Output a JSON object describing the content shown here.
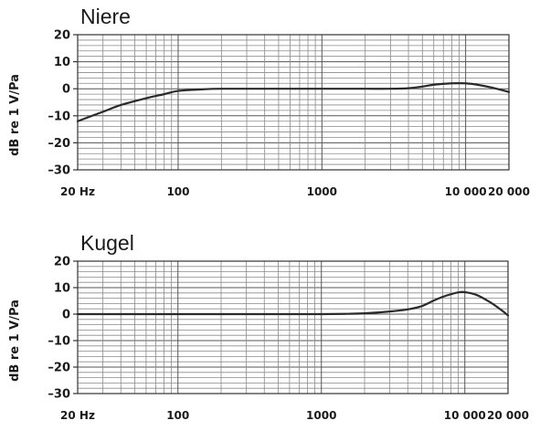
{
  "chart_data": [
    {
      "type": "line",
      "title": "Niere",
      "ylabel": "dB re 1 V/Pa",
      "xscale": "log",
      "xlim": [
        20,
        20000
      ],
      "ylim": [
        -30,
        20
      ],
      "xticks": [
        {
          "value": 20,
          "label": "20 Hz"
        },
        {
          "value": 100,
          "label": "100"
        },
        {
          "value": 1000,
          "label": "1000"
        },
        {
          "value": 10000,
          "label": "10 000"
        },
        {
          "value": 20000,
          "label": "20 000"
        }
      ],
      "yticks": [
        {
          "value": 20,
          "label": "20"
        },
        {
          "value": 10,
          "label": "10"
        },
        {
          "value": 0,
          "label": "0"
        },
        {
          "value": -10,
          "label": "–10"
        },
        {
          "value": -20,
          "label": "–20"
        },
        {
          "value": -30,
          "label": "–30"
        }
      ],
      "grid": true,
      "series": [
        {
          "x": [
            20,
            30,
            40,
            60,
            80,
            100,
            150,
            200,
            500,
            1000,
            2000,
            3000,
            4000,
            5000,
            6000,
            8000,
            10000,
            12000,
            15000,
            20000
          ],
          "y": [
            -12,
            -8.5,
            -6,
            -3.5,
            -2,
            -0.8,
            -0.2,
            0,
            0,
            0,
            0,
            0,
            0.2,
            0.8,
            1.5,
            2,
            2,
            1.5,
            0.5,
            -1.2
          ]
        }
      ]
    },
    {
      "type": "line",
      "title": "Kugel",
      "ylabel": "dB re 1 V/Pa",
      "xscale": "log",
      "xlim": [
        20,
        20000
      ],
      "ylim": [
        -30,
        20
      ],
      "xticks": [
        {
          "value": 20,
          "label": "20 Hz"
        },
        {
          "value": 100,
          "label": "100"
        },
        {
          "value": 1000,
          "label": "1000"
        },
        {
          "value": 10000,
          "label": "10 000"
        },
        {
          "value": 20000,
          "label": "20 000"
        }
      ],
      "yticks": [
        {
          "value": 20,
          "label": "20"
        },
        {
          "value": 10,
          "label": "10"
        },
        {
          "value": 0,
          "label": "0"
        },
        {
          "value": -10,
          "label": "–10"
        },
        {
          "value": -20,
          "label": "–20"
        },
        {
          "value": -30,
          "label": "–30"
        }
      ],
      "grid": true,
      "series": [
        {
          "x": [
            20,
            100,
            500,
            1000,
            1500,
            2000,
            3000,
            4000,
            5000,
            6000,
            7000,
            8000,
            9000,
            10000,
            12000,
            15000,
            18000,
            20000
          ],
          "y": [
            0,
            0,
            0,
            0,
            0.1,
            0.3,
            1,
            1.8,
            3,
            5,
            6.5,
            7.5,
            8.2,
            8.3,
            7.3,
            4.5,
            1.5,
            -0.5
          ]
        }
      ]
    }
  ]
}
